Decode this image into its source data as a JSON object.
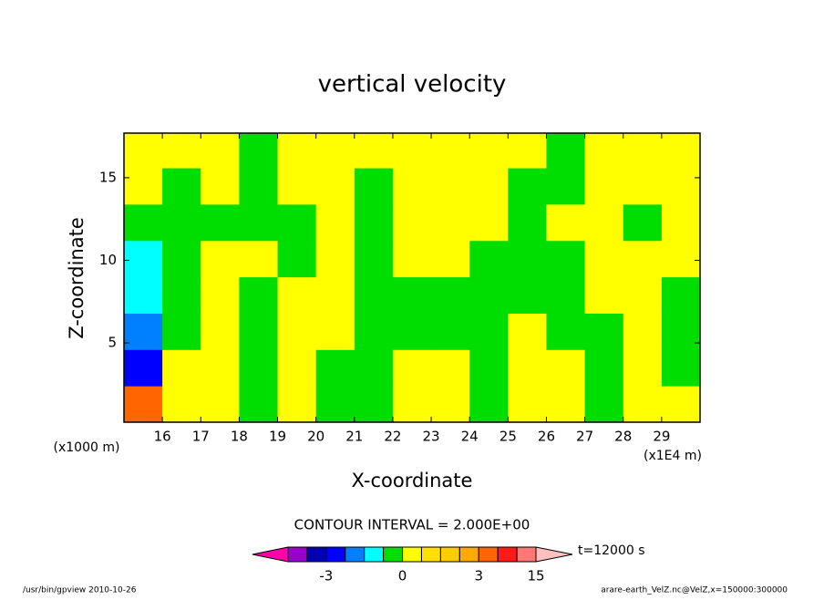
{
  "chart_data": {
    "type": "contour",
    "title": "vertical velocity",
    "xlabel": "X-coordinate",
    "ylabel": "Z-coordinate",
    "x_unit": "(x1E4 m)",
    "y_unit": "(x1000 m)",
    "xlim": [
      15,
      30
    ],
    "ylim": [
      0.2,
      17.7
    ],
    "xticks": [
      16,
      17,
      18,
      19,
      20,
      21,
      22,
      23,
      24,
      25,
      26,
      27,
      28,
      29
    ],
    "yticks": [
      5,
      10,
      15
    ],
    "field": {
      "x": [
        15.5,
        16.5,
        17.5,
        18.5,
        19.5,
        20.5,
        21.5,
        22.5,
        23.5,
        24.5,
        25.5,
        26.5,
        27.5,
        28.5,
        29.5
      ],
      "y": [
        1.3,
        3.5,
        5.7,
        7.9,
        10.1,
        12.3,
        14.5,
        16.7
      ],
      "values": [
        [
          4,
          0.2,
          0.2,
          -0.2,
          0.2,
          -0.2,
          -0.2,
          0.2,
          0.2,
          -0.2,
          0.2,
          0.2,
          -0.2,
          0.2,
          0.2
        ],
        [
          -3,
          0.2,
          0.2,
          -0.2,
          0.2,
          -0.2,
          -0.2,
          0.2,
          0.2,
          -0.2,
          0.2,
          0.2,
          -0.2,
          0.2,
          -0.2
        ],
        [
          -1.5,
          -0.2,
          0.2,
          -0.2,
          0.2,
          0.2,
          -0.2,
          -0.2,
          -0.2,
          -0.2,
          0.2,
          -0.2,
          -0.2,
          0.2,
          -0.2
        ],
        [
          -0.7,
          -0.2,
          0.2,
          -0.2,
          0.2,
          0.2,
          -0.2,
          -0.2,
          -0.2,
          -0.2,
          -0.2,
          -0.2,
          0.2,
          0.2,
          -0.2
        ],
        [
          -0.7,
          -0.2,
          0.2,
          0.2,
          -0.2,
          0.2,
          -0.2,
          0.2,
          0.2,
          -0.2,
          -0.2,
          -0.2,
          0.2,
          0.2,
          0.2
        ],
        [
          -0.2,
          -0.2,
          -0.2,
          -0.2,
          -0.2,
          0.2,
          -0.2,
          0.2,
          0.2,
          0.2,
          -0.2,
          0.2,
          0.2,
          -0.2,
          0.2
        ],
        [
          0.2,
          -0.2,
          0.2,
          -0.2,
          0.2,
          0.2,
          -0.2,
          0.2,
          0.2,
          0.2,
          -0.2,
          -0.2,
          0.2,
          0.2,
          0.2
        ],
        [
          0.2,
          0.2,
          0.2,
          -0.2,
          0.2,
          0.2,
          0.2,
          0.2,
          0.2,
          0.2,
          0.2,
          -0.2,
          0.2,
          0.2,
          0.2
        ]
      ]
    },
    "levels": [
      -20,
      -10,
      -3,
      -2,
      -1,
      -0.5,
      0,
      0.5,
      1,
      2,
      3,
      7,
      11,
      15
    ],
    "level_colors": [
      "#ff00aa",
      "#9900cc",
      "#0000b0",
      "#0000ff",
      "#0080ff",
      "#00ffff",
      "#00dd00",
      "#ffff00",
      "#ffe000",
      "#ffcc00",
      "#ffaa00",
      "#ff6600",
      "#ff1a1a",
      "#ff7777",
      "#ffc0c0"
    ],
    "colorbar_ticks": [
      -3,
      0,
      3,
      15
    ],
    "contour_interval": "CONTOUR INTERVAL = 2.000E+00",
    "time": "t=12000 s",
    "footer_left": "/usr/bin/gpview  2010-10-26",
    "footer_right": "arare-earth_VelZ.nc@VelZ,x=150000:300000"
  }
}
